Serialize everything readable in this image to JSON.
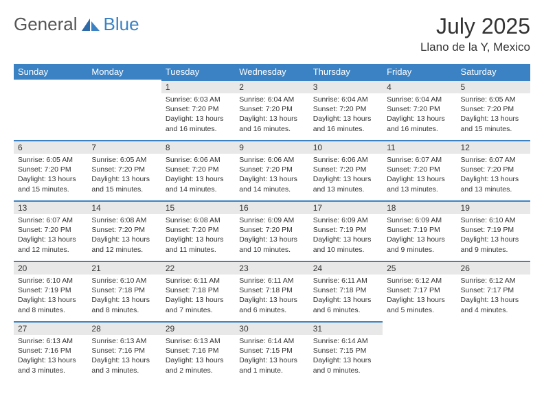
{
  "brand": {
    "part1": "General",
    "part2": "Blue"
  },
  "title": "July 2025",
  "location": "Llano de la Y, Mexico",
  "dayNames": [
    "Sunday",
    "Monday",
    "Tuesday",
    "Wednesday",
    "Thursday",
    "Friday",
    "Saturday"
  ],
  "colors": {
    "header_bg": "#3b82c4",
    "header_fg": "#ffffff",
    "daynum_bg": "#e8e8e8",
    "text": "#333333",
    "logo_gray": "#555555",
    "logo_blue": "#3b82c4"
  },
  "weeks": [
    [
      null,
      null,
      {
        "n": "1",
        "sr": "Sunrise: 6:03 AM",
        "ss": "Sunset: 7:20 PM",
        "dl": "Daylight: 13 hours and 16 minutes."
      },
      {
        "n": "2",
        "sr": "Sunrise: 6:04 AM",
        "ss": "Sunset: 7:20 PM",
        "dl": "Daylight: 13 hours and 16 minutes."
      },
      {
        "n": "3",
        "sr": "Sunrise: 6:04 AM",
        "ss": "Sunset: 7:20 PM",
        "dl": "Daylight: 13 hours and 16 minutes."
      },
      {
        "n": "4",
        "sr": "Sunrise: 6:04 AM",
        "ss": "Sunset: 7:20 PM",
        "dl": "Daylight: 13 hours and 16 minutes."
      },
      {
        "n": "5",
        "sr": "Sunrise: 6:05 AM",
        "ss": "Sunset: 7:20 PM",
        "dl": "Daylight: 13 hours and 15 minutes."
      }
    ],
    [
      {
        "n": "6",
        "sr": "Sunrise: 6:05 AM",
        "ss": "Sunset: 7:20 PM",
        "dl": "Daylight: 13 hours and 15 minutes."
      },
      {
        "n": "7",
        "sr": "Sunrise: 6:05 AM",
        "ss": "Sunset: 7:20 PM",
        "dl": "Daylight: 13 hours and 15 minutes."
      },
      {
        "n": "8",
        "sr": "Sunrise: 6:06 AM",
        "ss": "Sunset: 7:20 PM",
        "dl": "Daylight: 13 hours and 14 minutes."
      },
      {
        "n": "9",
        "sr": "Sunrise: 6:06 AM",
        "ss": "Sunset: 7:20 PM",
        "dl": "Daylight: 13 hours and 14 minutes."
      },
      {
        "n": "10",
        "sr": "Sunrise: 6:06 AM",
        "ss": "Sunset: 7:20 PM",
        "dl": "Daylight: 13 hours and 13 minutes."
      },
      {
        "n": "11",
        "sr": "Sunrise: 6:07 AM",
        "ss": "Sunset: 7:20 PM",
        "dl": "Daylight: 13 hours and 13 minutes."
      },
      {
        "n": "12",
        "sr": "Sunrise: 6:07 AM",
        "ss": "Sunset: 7:20 PM",
        "dl": "Daylight: 13 hours and 13 minutes."
      }
    ],
    [
      {
        "n": "13",
        "sr": "Sunrise: 6:07 AM",
        "ss": "Sunset: 7:20 PM",
        "dl": "Daylight: 13 hours and 12 minutes."
      },
      {
        "n": "14",
        "sr": "Sunrise: 6:08 AM",
        "ss": "Sunset: 7:20 PM",
        "dl": "Daylight: 13 hours and 12 minutes."
      },
      {
        "n": "15",
        "sr": "Sunrise: 6:08 AM",
        "ss": "Sunset: 7:20 PM",
        "dl": "Daylight: 13 hours and 11 minutes."
      },
      {
        "n": "16",
        "sr": "Sunrise: 6:09 AM",
        "ss": "Sunset: 7:20 PM",
        "dl": "Daylight: 13 hours and 10 minutes."
      },
      {
        "n": "17",
        "sr": "Sunrise: 6:09 AM",
        "ss": "Sunset: 7:19 PM",
        "dl": "Daylight: 13 hours and 10 minutes."
      },
      {
        "n": "18",
        "sr": "Sunrise: 6:09 AM",
        "ss": "Sunset: 7:19 PM",
        "dl": "Daylight: 13 hours and 9 minutes."
      },
      {
        "n": "19",
        "sr": "Sunrise: 6:10 AM",
        "ss": "Sunset: 7:19 PM",
        "dl": "Daylight: 13 hours and 9 minutes."
      }
    ],
    [
      {
        "n": "20",
        "sr": "Sunrise: 6:10 AM",
        "ss": "Sunset: 7:19 PM",
        "dl": "Daylight: 13 hours and 8 minutes."
      },
      {
        "n": "21",
        "sr": "Sunrise: 6:10 AM",
        "ss": "Sunset: 7:18 PM",
        "dl": "Daylight: 13 hours and 8 minutes."
      },
      {
        "n": "22",
        "sr": "Sunrise: 6:11 AM",
        "ss": "Sunset: 7:18 PM",
        "dl": "Daylight: 13 hours and 7 minutes."
      },
      {
        "n": "23",
        "sr": "Sunrise: 6:11 AM",
        "ss": "Sunset: 7:18 PM",
        "dl": "Daylight: 13 hours and 6 minutes."
      },
      {
        "n": "24",
        "sr": "Sunrise: 6:11 AM",
        "ss": "Sunset: 7:18 PM",
        "dl": "Daylight: 13 hours and 6 minutes."
      },
      {
        "n": "25",
        "sr": "Sunrise: 6:12 AM",
        "ss": "Sunset: 7:17 PM",
        "dl": "Daylight: 13 hours and 5 minutes."
      },
      {
        "n": "26",
        "sr": "Sunrise: 6:12 AM",
        "ss": "Sunset: 7:17 PM",
        "dl": "Daylight: 13 hours and 4 minutes."
      }
    ],
    [
      {
        "n": "27",
        "sr": "Sunrise: 6:13 AM",
        "ss": "Sunset: 7:16 PM",
        "dl": "Daylight: 13 hours and 3 minutes."
      },
      {
        "n": "28",
        "sr": "Sunrise: 6:13 AM",
        "ss": "Sunset: 7:16 PM",
        "dl": "Daylight: 13 hours and 3 minutes."
      },
      {
        "n": "29",
        "sr": "Sunrise: 6:13 AM",
        "ss": "Sunset: 7:16 PM",
        "dl": "Daylight: 13 hours and 2 minutes."
      },
      {
        "n": "30",
        "sr": "Sunrise: 6:14 AM",
        "ss": "Sunset: 7:15 PM",
        "dl": "Daylight: 13 hours and 1 minute."
      },
      {
        "n": "31",
        "sr": "Sunrise: 6:14 AM",
        "ss": "Sunset: 7:15 PM",
        "dl": "Daylight: 13 hours and 0 minutes."
      },
      null,
      null
    ]
  ]
}
